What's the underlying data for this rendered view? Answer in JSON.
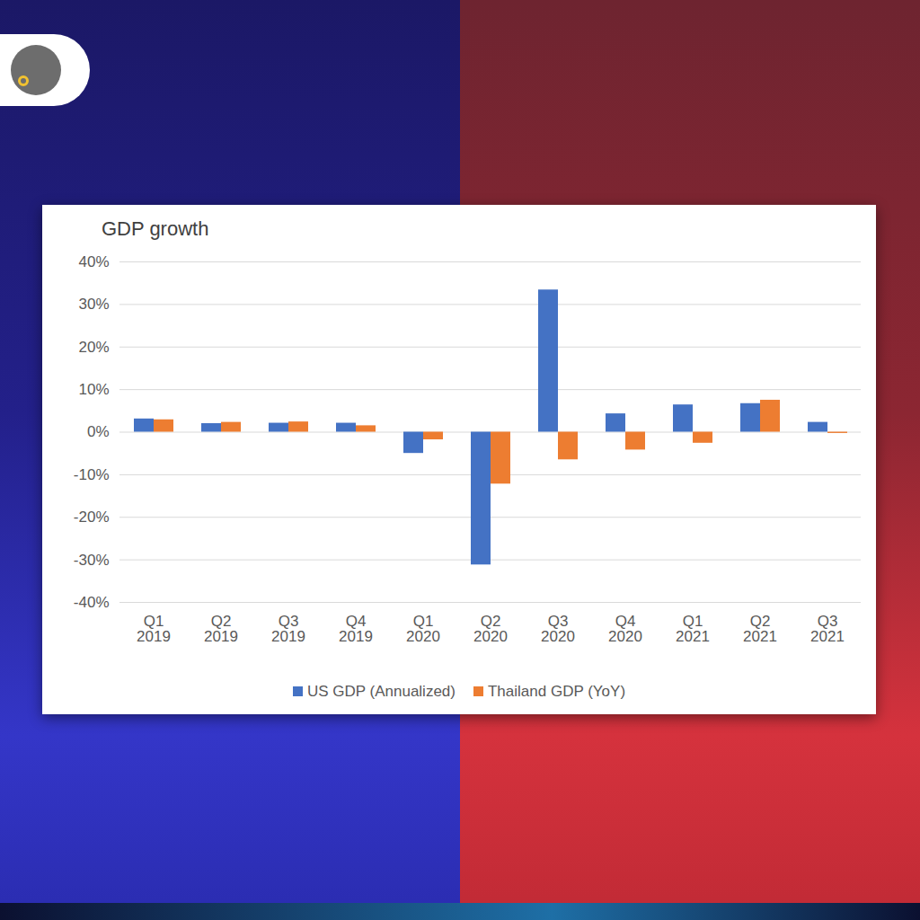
{
  "chart_data": {
    "type": "bar",
    "title": "GDP growth",
    "categories": [
      "Q1 2019",
      "Q2 2019",
      "Q3 2019",
      "Q4 2019",
      "Q1 2020",
      "Q2 2020",
      "Q3 2020",
      "Q4 2020",
      "Q1 2021",
      "Q2 2021",
      "Q3 2021"
    ],
    "series": [
      {
        "name": "US GDP (Annualized)",
        "color": "#4472c4",
        "values": [
          3.1,
          2.0,
          2.1,
          2.1,
          -5.0,
          -31.2,
          33.4,
          4.3,
          6.4,
          6.7,
          2.3
        ]
      },
      {
        "name": "Thailand GDP (YoY)",
        "color": "#ed7d31",
        "values": [
          2.9,
          2.3,
          2.4,
          1.5,
          -1.8,
          -12.2,
          -6.5,
          -4.2,
          -2.6,
          7.5,
          -0.3
        ]
      }
    ],
    "ylim": [
      -40,
      40
    ],
    "yticks": [
      {
        "value": -40,
        "label": "-40%"
      },
      {
        "value": -30,
        "label": "-30%"
      },
      {
        "value": -20,
        "label": "-20%"
      },
      {
        "value": -10,
        "label": "-10%"
      },
      {
        "value": 0,
        "label": "0%"
      },
      {
        "value": 10,
        "label": "10%"
      },
      {
        "value": 20,
        "label": "20%"
      },
      {
        "value": 30,
        "label": "30%"
      },
      {
        "value": 40,
        "label": "40%"
      }
    ],
    "grid": true,
    "legend": "bottom"
  }
}
